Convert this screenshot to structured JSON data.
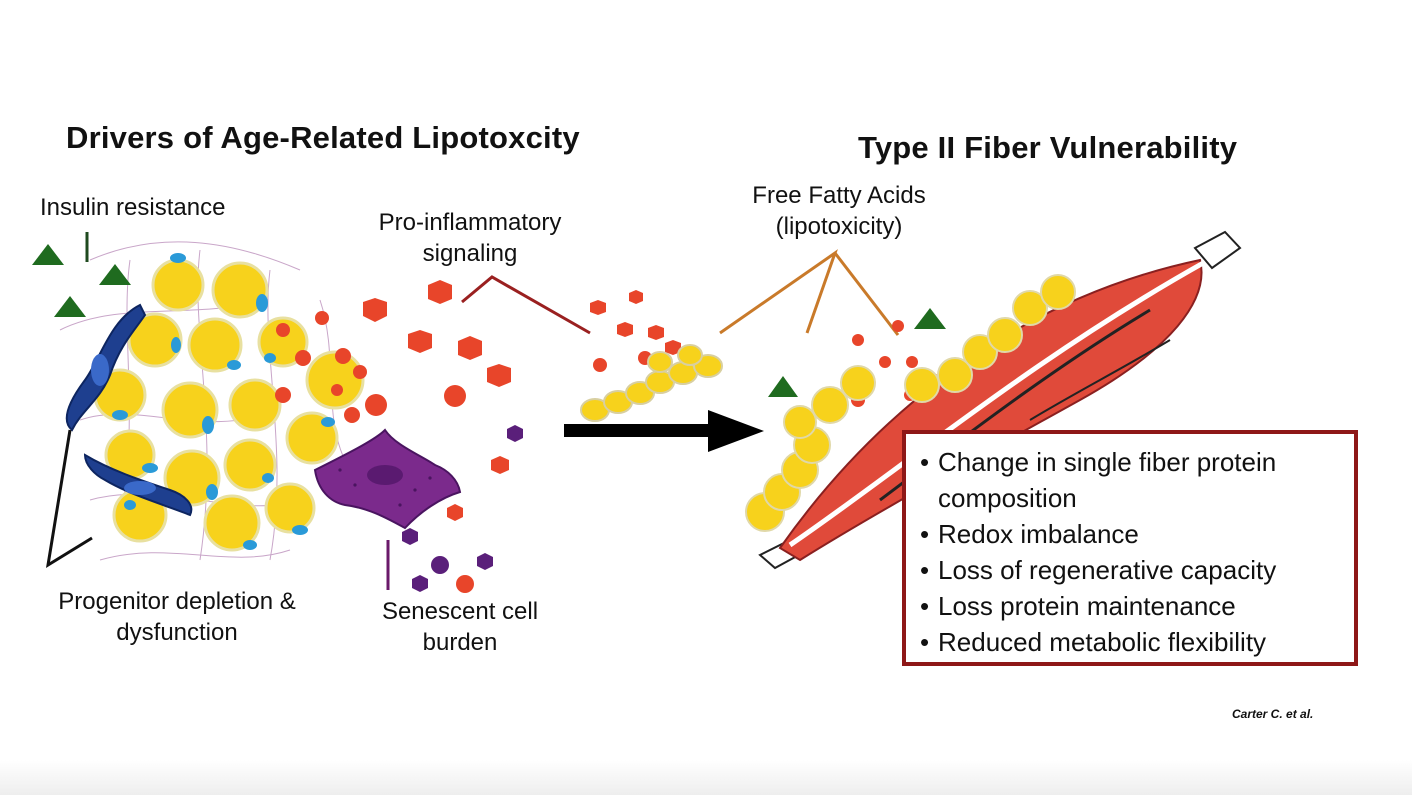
{
  "titles": {
    "left": "Drivers of Age-Related Lipotoxcity",
    "right": "Type II Fiber Vulnerability"
  },
  "labels": {
    "insulin_resistance": "Insulin resistance",
    "pro_inflammatory_line1": "Pro-inflammatory",
    "pro_inflammatory_line2": "signaling",
    "free_fatty_acids_line1": "Free Fatty Acids",
    "free_fatty_acids_line2": "(lipotoxicity)",
    "progenitor_line1": "Progenitor depletion &",
    "progenitor_line2": "dysfunction",
    "senescent_line1": "Senescent cell",
    "senescent_line2": "burden"
  },
  "vulnerability_list": [
    "Change in single fiber protein",
    "composition",
    "Redox imbalance",
    "Loss of regenerative capacity",
    "Loss protein maintenance",
    "Reduced metabolic flexibility"
  ],
  "citation": "Carter C. et al.",
  "colors": {
    "adipocyte": "#f7d21c",
    "cytokine": "#e8452a",
    "senescent_cell": "#7b2a8c",
    "progenitor_cell": "#1e3f8f",
    "triangle": "#1f6b1f",
    "muscle": "#e04a3a",
    "box_border": "#8e1818",
    "connector_red": "#9a2020",
    "connector_orange": "#c97a2a"
  }
}
